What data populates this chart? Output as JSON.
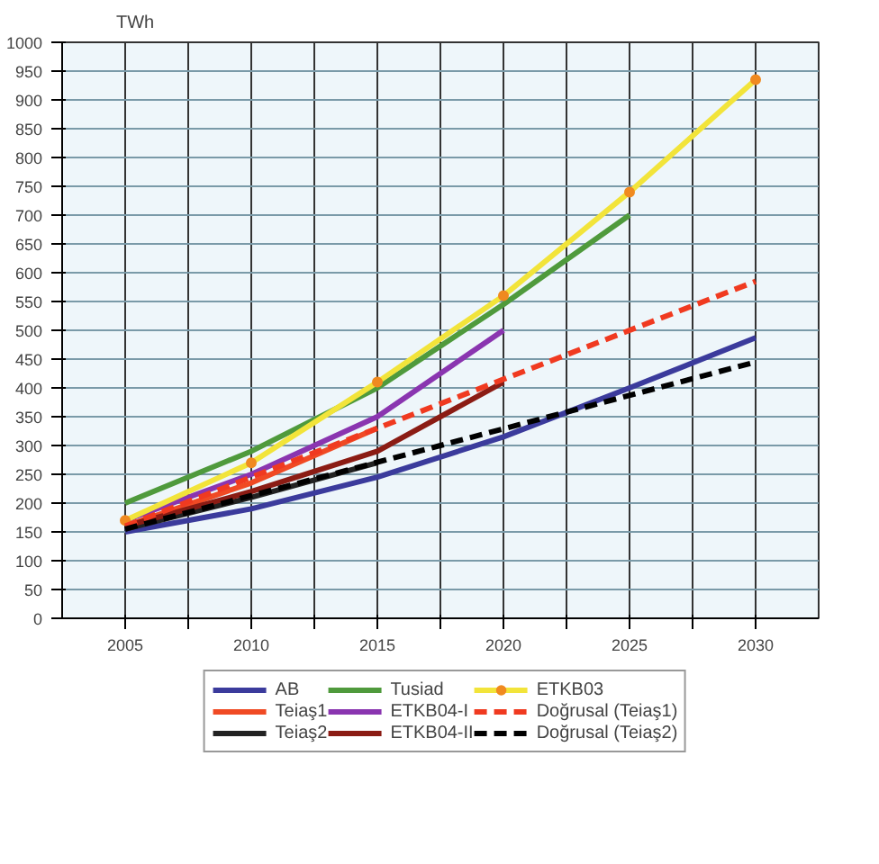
{
  "chart_data": {
    "type": "line",
    "ylabel": "TWh",
    "xlim": [
      2002.5,
      2032.5
    ],
    "xticks": [
      2005,
      {
        "value": 2007.5,
        "label": null
      },
      2010,
      {
        "value": 2012.5,
        "label": null
      },
      2015,
      {
        "value": 2017.5,
        "label": null
      },
      2020,
      {
        "value": 2022.5,
        "label": null
      },
      2025,
      {
        "value": 2027.5,
        "label": null
      },
      2030
    ],
    "ylim": [
      0,
      1000
    ],
    "yticks": [
      0,
      50,
      100,
      150,
      200,
      250,
      300,
      350,
      400,
      450,
      500,
      550,
      600,
      650,
      700,
      750,
      800,
      850,
      900,
      950,
      1000
    ],
    "grid": true,
    "legend": "bottom",
    "series": [
      {
        "name": "AB",
        "color": "#3b3b9c",
        "x": [
          2005,
          2010,
          2015,
          2020,
          2025,
          2030
        ],
        "values": [
          150,
          190,
          245,
          315,
          400,
          487
        ]
      },
      {
        "name": "Teiaş1",
        "color": "#f04a24",
        "x": [
          2005,
          2010,
          2015
        ],
        "values": [
          160,
          235,
          330
        ]
      },
      {
        "name": "Teiaş2",
        "color": "#222222",
        "x": [
          2005,
          2010,
          2015
        ],
        "values": [
          155,
          210,
          270
        ]
      },
      {
        "name": "Tusiad",
        "color": "#4f9a3c",
        "x": [
          2005,
          2010,
          2015,
          2020,
          2025
        ],
        "values": [
          200,
          290,
          400,
          545,
          700
        ]
      },
      {
        "name": "ETKB04-I",
        "color": "#8a35b0",
        "x": [
          2005,
          2010,
          2015,
          2020
        ],
        "values": [
          170,
          250,
          350,
          500
        ]
      },
      {
        "name": "ETKB04-II",
        "color": "#8b1c14",
        "x": [
          2005,
          2010,
          2015,
          2020
        ],
        "values": [
          160,
          220,
          290,
          410
        ]
      },
      {
        "name": "ETKB03",
        "color": "#f2e43a",
        "marker": "circle",
        "x": [
          2005,
          2010,
          2015,
          2020,
          2025,
          2030
        ],
        "values": [
          170,
          270,
          410,
          560,
          740,
          935
        ]
      },
      {
        "name": "Doğrusal (Teiaş1)",
        "color": "#f03a20",
        "line_style": "dashed",
        "x": [
          2005,
          2030
        ],
        "values": [
          160,
          585
        ]
      },
      {
        "name": "Doğrusal (Teiaş2)",
        "color": "#000000",
        "line_style": "dashed",
        "x": [
          2005,
          2030
        ],
        "values": [
          155,
          445
        ]
      }
    ]
  }
}
